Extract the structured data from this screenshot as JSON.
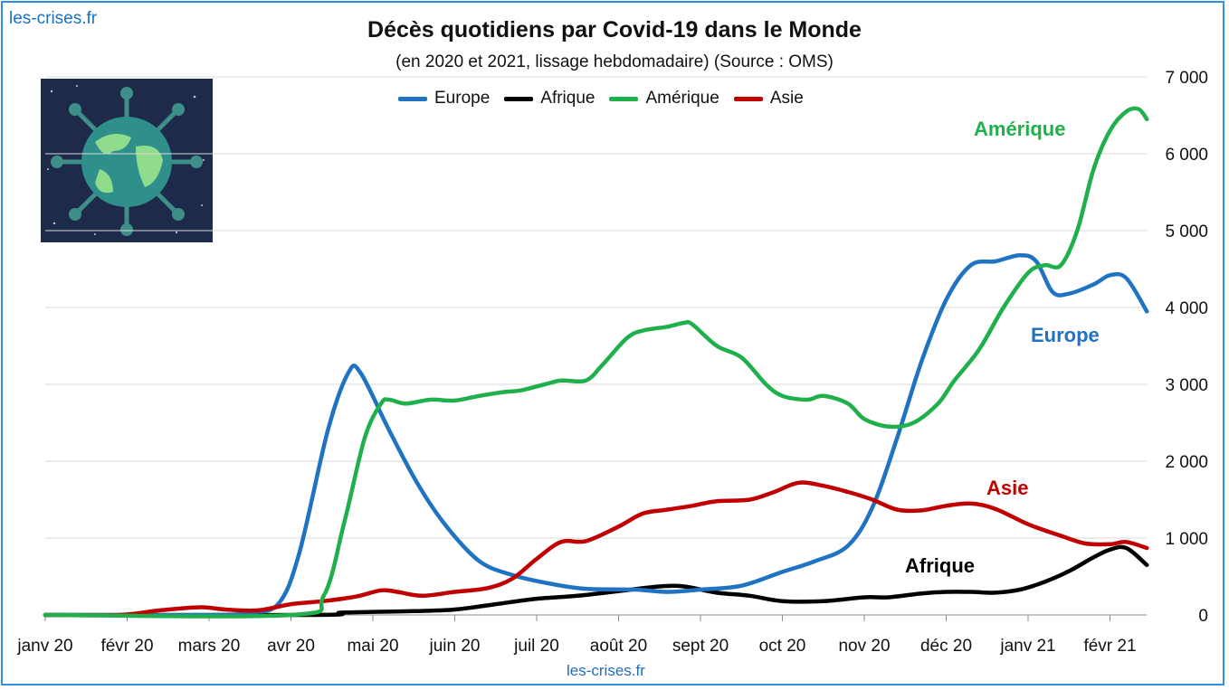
{
  "watermark_top": "les-crises.fr",
  "watermark_bottom": "les-crises.fr",
  "logo_icon": "virus-globe-icon",
  "chart_data": {
    "type": "line",
    "title": "Décès quotidiens par Covid-19 dans le Monde",
    "subtitle": "(en 2020 et 2021, lissage hebdomadaire) (Source : OMS)",
    "x_tick_labels": [
      "janv 20",
      "févr 20",
      "mars 20",
      "avr 20",
      "mai 20",
      "juin 20",
      "juil 20",
      "août 20",
      "sept 20",
      "oct 20",
      "nov 20",
      "déc 20",
      "janv 21",
      "févr 21"
    ],
    "y_tick_labels": [
      "0",
      "1 000",
      "2 000",
      "3 000",
      "4 000",
      "5 000",
      "6 000",
      "7 000"
    ],
    "ylim": [
      0,
      7000
    ],
    "x_unit": "months since janv 20",
    "xlim": [
      0,
      13.45
    ],
    "grid": "horizontal",
    "legend_position": "top",
    "series": [
      {
        "name": "Europe",
        "label": "Europe",
        "color": "#1f73c2",
        "points": [
          [
            0,
            0
          ],
          [
            2,
            0
          ],
          [
            2.5,
            30
          ],
          [
            2.85,
            150
          ],
          [
            3.1,
            800
          ],
          [
            3.45,
            2400
          ],
          [
            3.7,
            3150
          ],
          [
            3.85,
            3150
          ],
          [
            4.2,
            2400
          ],
          [
            4.55,
            1700
          ],
          [
            4.9,
            1150
          ],
          [
            5.3,
            700
          ],
          [
            5.7,
            520
          ],
          [
            6.2,
            400
          ],
          [
            6.6,
            340
          ],
          [
            7.2,
            330
          ],
          [
            7.6,
            300
          ],
          [
            8,
            330
          ],
          [
            8.5,
            380
          ],
          [
            9,
            560
          ],
          [
            9.4,
            700
          ],
          [
            9.8,
            900
          ],
          [
            10.1,
            1400
          ],
          [
            10.4,
            2300
          ],
          [
            10.7,
            3300
          ],
          [
            11,
            4100
          ],
          [
            11.3,
            4550
          ],
          [
            11.6,
            4600
          ],
          [
            11.9,
            4680
          ],
          [
            12.1,
            4600
          ],
          [
            12.3,
            4200
          ],
          [
            12.5,
            4180
          ],
          [
            12.8,
            4300
          ],
          [
            13,
            4420
          ],
          [
            13.2,
            4380
          ],
          [
            13.45,
            3950
          ]
        ]
      },
      {
        "name": "Afrique",
        "label": "Afrique",
        "color": "#000000",
        "points": [
          [
            0,
            0
          ],
          [
            3.3,
            0
          ],
          [
            3.6,
            30
          ],
          [
            4,
            40
          ],
          [
            4.5,
            50
          ],
          [
            5,
            70
          ],
          [
            5.5,
            140
          ],
          [
            6,
            210
          ],
          [
            6.5,
            250
          ],
          [
            7,
            310
          ],
          [
            7.5,
            370
          ],
          [
            7.8,
            370
          ],
          [
            8.2,
            290
          ],
          [
            8.6,
            250
          ],
          [
            9,
            180
          ],
          [
            9.5,
            180
          ],
          [
            10,
            230
          ],
          [
            10.3,
            230
          ],
          [
            10.7,
            280
          ],
          [
            11,
            300
          ],
          [
            11.3,
            300
          ],
          [
            11.6,
            290
          ],
          [
            11.9,
            330
          ],
          [
            12.2,
            430
          ],
          [
            12.5,
            570
          ],
          [
            12.8,
            750
          ],
          [
            13,
            850
          ],
          [
            13.2,
            870
          ],
          [
            13.45,
            650
          ]
        ]
      },
      {
        "name": "Amérique",
        "label": "Amérique",
        "color": "#1fb04c",
        "points": [
          [
            0,
            0
          ],
          [
            3,
            0
          ],
          [
            3.4,
            250
          ],
          [
            3.65,
            1200
          ],
          [
            3.9,
            2300
          ],
          [
            4.1,
            2750
          ],
          [
            4.2,
            2800
          ],
          [
            4.4,
            2750
          ],
          [
            4.7,
            2800
          ],
          [
            5,
            2790
          ],
          [
            5.3,
            2850
          ],
          [
            5.6,
            2900
          ],
          [
            5.8,
            2920
          ],
          [
            6.1,
            3000
          ],
          [
            6.3,
            3050
          ],
          [
            6.6,
            3050
          ],
          [
            6.8,
            3250
          ],
          [
            7.1,
            3600
          ],
          [
            7.3,
            3700
          ],
          [
            7.6,
            3750
          ],
          [
            7.8,
            3800
          ],
          [
            7.9,
            3780
          ],
          [
            8.2,
            3500
          ],
          [
            8.5,
            3350
          ],
          [
            8.8,
            3000
          ],
          [
            9,
            2850
          ],
          [
            9.3,
            2800
          ],
          [
            9.5,
            2850
          ],
          [
            9.8,
            2750
          ],
          [
            10,
            2550
          ],
          [
            10.3,
            2450
          ],
          [
            10.6,
            2500
          ],
          [
            10.9,
            2750
          ],
          [
            11.1,
            3050
          ],
          [
            11.4,
            3450
          ],
          [
            11.7,
            4000
          ],
          [
            12,
            4450
          ],
          [
            12.2,
            4550
          ],
          [
            12.4,
            4550
          ],
          [
            12.6,
            5000
          ],
          [
            12.8,
            5800
          ],
          [
            13,
            6300
          ],
          [
            13.2,
            6550
          ],
          [
            13.35,
            6580
          ],
          [
            13.45,
            6450
          ]
        ]
      },
      {
        "name": "Asie",
        "label": "Asie",
        "color": "#c00000",
        "points": [
          [
            0,
            0
          ],
          [
            0.9,
            0
          ],
          [
            1.4,
            60
          ],
          [
            1.9,
            100
          ],
          [
            2.2,
            70
          ],
          [
            2.6,
            60
          ],
          [
            3,
            140
          ],
          [
            3.4,
            180
          ],
          [
            3.8,
            240
          ],
          [
            4.1,
            320
          ],
          [
            4.3,
            300
          ],
          [
            4.6,
            250
          ],
          [
            5,
            300
          ],
          [
            5.4,
            350
          ],
          [
            5.7,
            470
          ],
          [
            6,
            730
          ],
          [
            6.3,
            950
          ],
          [
            6.6,
            960
          ],
          [
            7,
            1150
          ],
          [
            7.3,
            1320
          ],
          [
            7.6,
            1370
          ],
          [
            7.9,
            1420
          ],
          [
            8.2,
            1480
          ],
          [
            8.6,
            1500
          ],
          [
            8.9,
            1600
          ],
          [
            9.2,
            1720
          ],
          [
            9.5,
            1680
          ],
          [
            9.8,
            1600
          ],
          [
            10.1,
            1500
          ],
          [
            10.4,
            1370
          ],
          [
            10.7,
            1360
          ],
          [
            11,
            1420
          ],
          [
            11.3,
            1450
          ],
          [
            11.6,
            1380
          ],
          [
            12,
            1180
          ],
          [
            12.4,
            1030
          ],
          [
            12.7,
            930
          ],
          [
            13,
            920
          ],
          [
            13.2,
            950
          ],
          [
            13.45,
            870
          ]
        ]
      }
    ]
  }
}
